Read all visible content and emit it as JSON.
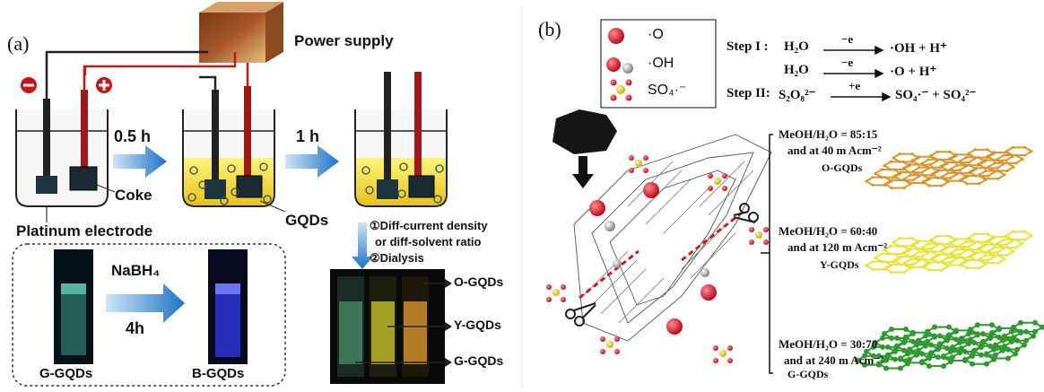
{
  "panel_a": {
    "label": "(a)",
    "power_supply": "Power supply",
    "minus_sign": "−",
    "plus_sign": "+",
    "arrow1_label": "0.5 h",
    "arrow2_label": "1 h",
    "coke_label": "Coke",
    "gqds_label": "GQDs",
    "platinum_label": "Platinum electrode",
    "step1": "①Diff-current density",
    "step1b": "or diff-solvent ratio",
    "step2": "②Dialysis",
    "reduction_reagent": "NaBH₄",
    "reduction_time": "4h",
    "g_gqds_cuvette": "G-GQDs",
    "b_gqds_cuvette": "B-GQDs",
    "vial_labels": [
      "O-GQDs",
      "Y-GQDs",
      "G-GQDs"
    ]
  },
  "panel_b": {
    "label": "(b)",
    "legend": [
      "·O",
      "·OH",
      "SO₄·⁻"
    ],
    "step_i_label": "Step I :",
    "step_i_line1_left": "H₂O",
    "step_i_line1_arrow": "−e",
    "step_i_line1_right": "·OH  + H⁺",
    "step_i_line2_left": "H₂O",
    "step_i_line2_arrow": "−e",
    "step_i_line2_right": "·O  + H⁺",
    "step_ii_label": "Step II:",
    "step_ii_left": "S₂O₈²⁻",
    "step_ii_arrow": "+e",
    "step_ii_right": "SO₄·⁻ + SO₄²⁻",
    "conditions": [
      {
        "line1": "MeOH/H₂O = 85:15",
        "line2": "and at 40 m  Acm⁻²",
        "product": "O-GQDs"
      },
      {
        "line1": "MeOH/H₂O = 60:40",
        "line2": "and at 120 m  Acm⁻²",
        "product": "Y-GQDs"
      },
      {
        "line1": "MeOH/H₂O = 30:70",
        "line2": "and at 240 m  Acm⁻²",
        "product": "G-GQDs"
      }
    ],
    "colors": {
      "orange": "#d8962e",
      "yellow": "#e9e23a",
      "green": "#2f9a2f"
    }
  }
}
